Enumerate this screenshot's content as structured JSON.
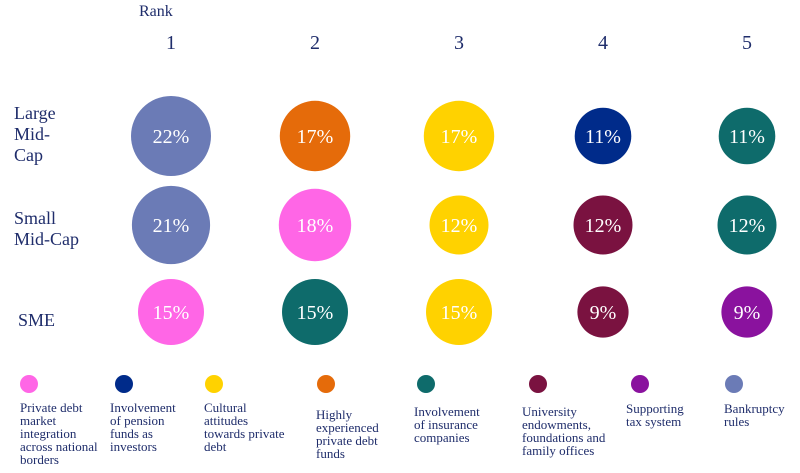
{
  "chart_data": {
    "type": "bubble-matrix",
    "title": "",
    "column_header": "Rank",
    "ranks": [
      "1",
      "2",
      "3",
      "4",
      "5"
    ],
    "categories": [
      {
        "key": "private_debt_integration",
        "label": "Private debt market integration across national borders",
        "color": "#ff66e6"
      },
      {
        "key": "pension_funds",
        "label": "Involvement of pension funds as investors",
        "color": "#002b8a"
      },
      {
        "key": "cultural_attitudes",
        "label": "Cultural attitudes towards private debt",
        "color": "#ffd200"
      },
      {
        "key": "experienced_funds",
        "label": "Highly experienced private debt funds",
        "color": "#e56b0a"
      },
      {
        "key": "insurance_companies",
        "label": "Involvement of insurance companies",
        "color": "#0e6b6b"
      },
      {
        "key": "university_endowments",
        "label": "University endowments, foundations and family offices",
        "color": "#7a1240"
      },
      {
        "key": "tax_system",
        "label": "Supporting tax system",
        "color": "#8a129e"
      },
      {
        "key": "bankruptcy_rules",
        "label": "Bankruptcy rules",
        "color": "#6b7bb6"
      }
    ],
    "rows": [
      {
        "label": "Large Mid-Cap",
        "cells": [
          {
            "rank": "1",
            "category": "bankruptcy_rules",
            "value": 22,
            "text": "22%"
          },
          {
            "rank": "2",
            "category": "experienced_funds",
            "value": 17,
            "text": "17%"
          },
          {
            "rank": "3",
            "category": "cultural_attitudes",
            "value": 17,
            "text": "17%"
          },
          {
            "rank": "4",
            "category": "pension_funds",
            "value": 11,
            "text": "11%"
          },
          {
            "rank": "5",
            "category": "insurance_companies",
            "value": 11,
            "text": "11%"
          }
        ]
      },
      {
        "label": "Small Mid-Cap",
        "cells": [
          {
            "rank": "1",
            "category": "bankruptcy_rules",
            "value": 21,
            "text": "21%"
          },
          {
            "rank": "2",
            "category": "private_debt_integration",
            "value": 18,
            "text": "18%"
          },
          {
            "rank": "3",
            "category": "cultural_attitudes",
            "value": 12,
            "text": "12%"
          },
          {
            "rank": "4",
            "category": "university_endowments",
            "value": 12,
            "text": "12%"
          },
          {
            "rank": "5",
            "category": "insurance_companies",
            "value": 12,
            "text": "12%"
          }
        ]
      },
      {
        "label": "SME",
        "cells": [
          {
            "rank": "1",
            "category": "private_debt_integration",
            "value": 15,
            "text": "15%"
          },
          {
            "rank": "2",
            "category": "insurance_companies",
            "value": 15,
            "text": "15%"
          },
          {
            "rank": "3",
            "category": "cultural_attitudes",
            "value": 15,
            "text": "15%"
          },
          {
            "rank": "4",
            "category": "university_endowments",
            "value": 9,
            "text": "9%"
          },
          {
            "rank": "5",
            "category": "tax_system",
            "value": 9,
            "text": "9%"
          }
        ]
      }
    ]
  }
}
